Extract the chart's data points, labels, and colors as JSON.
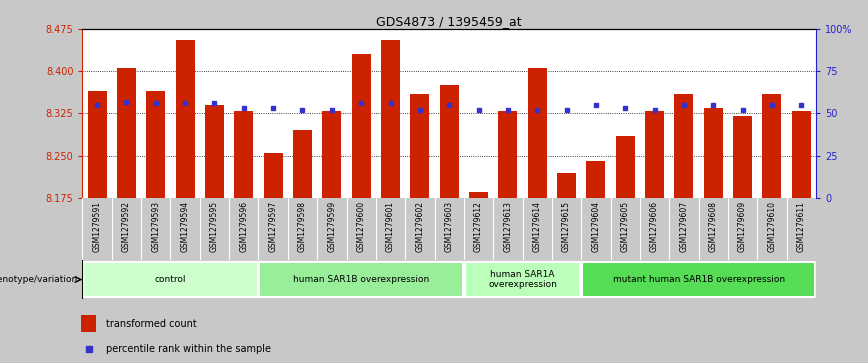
{
  "title": "GDS4873 / 1395459_at",
  "samples": [
    "GSM1279591",
    "GSM1279592",
    "GSM1279593",
    "GSM1279594",
    "GSM1279595",
    "GSM1279596",
    "GSM1279597",
    "GSM1279598",
    "GSM1279599",
    "GSM1279600",
    "GSM1279601",
    "GSM1279602",
    "GSM1279603",
    "GSM1279612",
    "GSM1279613",
    "GSM1279614",
    "GSM1279615",
    "GSM1279604",
    "GSM1279605",
    "GSM1279606",
    "GSM1279607",
    "GSM1279608",
    "GSM1279609",
    "GSM1279610",
    "GSM1279611"
  ],
  "bar_values": [
    8.365,
    8.405,
    8.365,
    8.455,
    8.34,
    8.33,
    8.255,
    8.295,
    8.33,
    8.43,
    8.455,
    8.36,
    8.375,
    8.185,
    8.33,
    8.405,
    8.22,
    8.24,
    8.285,
    8.33,
    8.36,
    8.335,
    8.32,
    8.36,
    8.33
  ],
  "percentile_values": [
    55,
    57,
    56,
    56,
    56,
    53,
    53,
    52,
    52,
    56,
    56,
    52,
    55,
    52,
    52,
    52,
    52,
    55,
    53,
    52,
    55,
    55,
    52,
    55,
    55
  ],
  "ymin": 8.175,
  "ymax": 8.475,
  "yticks": [
    8.175,
    8.25,
    8.325,
    8.4,
    8.475
  ],
  "right_yticks": [
    0,
    25,
    50,
    75,
    100
  ],
  "right_ytick_labels": [
    "0",
    "25",
    "50",
    "75",
    "100%"
  ],
  "bar_color": "#CC2200",
  "percentile_color": "#3333CC",
  "background_color": "#C8C8C8",
  "plot_bg_color": "#FFFFFF",
  "xtick_bg_color": "#C0C0C0",
  "groups": [
    {
      "label": "control",
      "start": 0,
      "end": 6,
      "color": "#CCFFCC"
    },
    {
      "label": "human SAR1B overexpression",
      "start": 6,
      "end": 13,
      "color": "#99EE99"
    },
    {
      "label": "human SAR1A\noverexpression",
      "start": 13,
      "end": 17,
      "color": "#BBFFBB"
    },
    {
      "label": "mutant human SAR1B overexpression",
      "start": 17,
      "end": 25,
      "color": "#55DD55"
    }
  ],
  "legend_label_bar": "transformed count",
  "legend_label_percentile": "percentile rank within the sample",
  "genotype_label": "genotype/variation",
  "left_tick_color": "#CC2200",
  "right_tick_color": "#2222CC"
}
